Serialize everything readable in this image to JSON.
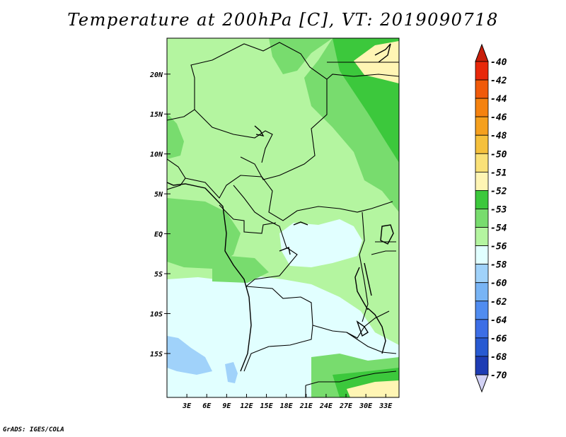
{
  "title": "Temperature at 200hPa [C], VT: 2019090718",
  "credit": "GrADS: IGES/COLA",
  "map": {
    "lon_range": [
      0,
      35
    ],
    "lat_range": [
      -20.5,
      24.5
    ],
    "x_ticks": [
      {
        "value": 3,
        "label": "3E"
      },
      {
        "value": 6,
        "label": "6E"
      },
      {
        "value": 9,
        "label": "9E"
      },
      {
        "value": 12,
        "label": "12E"
      },
      {
        "value": 15,
        "label": "15E"
      },
      {
        "value": 18,
        "label": "18E"
      },
      {
        "value": 21,
        "label": "21E"
      },
      {
        "value": 24,
        "label": "24E"
      },
      {
        "value": 27,
        "label": "27E"
      },
      {
        "value": 30,
        "label": "30E"
      },
      {
        "value": 33,
        "label": "33E"
      }
    ],
    "y_ticks": [
      {
        "value": 20,
        "label": "20N"
      },
      {
        "value": 15,
        "label": "15N"
      },
      {
        "value": 10,
        "label": "10N"
      },
      {
        "value": 5,
        "label": "5N"
      },
      {
        "value": 0,
        "label": "EQ"
      },
      {
        "value": -5,
        "label": "5S"
      },
      {
        "value": -10,
        "label": "10S"
      },
      {
        "value": -15,
        "label": "15S"
      }
    ]
  },
  "colorbar": {
    "levels": [
      {
        "label": "-40",
        "color": "#e8280a"
      },
      {
        "label": "-42",
        "color": "#f05a0a"
      },
      {
        "label": "-44",
        "color": "#f5820f"
      },
      {
        "label": "-46",
        "color": "#f5a01e"
      },
      {
        "label": "-48",
        "color": "#f5c03c"
      },
      {
        "label": "-50",
        "color": "#fae178"
      },
      {
        "label": "-51",
        "color": "#fff5b4"
      },
      {
        "label": "-52",
        "color": "#3cc83c"
      },
      {
        "label": "-53",
        "color": "#78dc6e"
      },
      {
        "label": "-54",
        "color": "#b4f5a0"
      },
      {
        "label": "-56",
        "color": "#e1ffff"
      },
      {
        "label": "-58",
        "color": "#a0d2fa"
      },
      {
        "label": "-60",
        "color": "#78b4f5"
      },
      {
        "label": "-62",
        "color": "#508cf0"
      },
      {
        "label": "-64",
        "color": "#3c6ee6"
      },
      {
        "label": "-66",
        "color": "#285ad2"
      },
      {
        "label": "-68",
        "color": "#1e3cb4"
      },
      {
        "label": "-70",
        "color": "#0a1478"
      }
    ],
    "top_cap_color": "#c81e0a",
    "bottom_cap_color": "#d2d2f5"
  }
}
